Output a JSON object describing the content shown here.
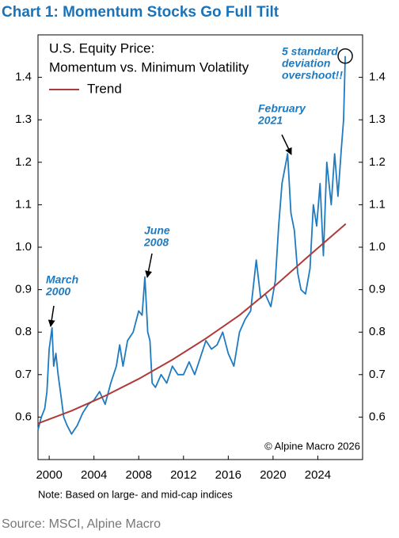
{
  "chart_data": {
    "type": "line",
    "title": "Chart 1: Momentum Stocks Go Full Tilt",
    "subtitle": [
      "U.S. Equity Price:",
      "Momentum vs. Minimum Volatility"
    ],
    "series": [
      {
        "color": "#1f7bc0",
        "x": [
          1999.0,
          1999.3,
          1999.6,
          1999.8,
          2000.0,
          2000.25,
          2000.4,
          2000.6,
          2000.8,
          2001.0,
          2001.3,
          2001.6,
          2002.0,
          2002.5,
          2003.0,
          2003.5,
          2004.0,
          2004.5,
          2005.0,
          2005.5,
          2006.0,
          2006.3,
          2006.6,
          2007.0,
          2007.5,
          2008.0,
          2008.3,
          2008.55,
          2008.8,
          2009.0,
          2009.2,
          2009.5,
          2010.0,
          2010.5,
          2011.0,
          2011.5,
          2012.0,
          2012.5,
          2013.0,
          2013.5,
          2014.0,
          2014.5,
          2015.0,
          2015.5,
          2016.0,
          2016.5,
          2017.0,
          2017.5,
          2018.0,
          2018.5,
          2018.9,
          2019.3,
          2019.8,
          2020.2,
          2020.5,
          2020.8,
          2021.3,
          2021.6,
          2021.9,
          2022.2,
          2022.5,
          2022.9,
          2023.3,
          2023.6,
          2023.9,
          2024.2,
          2024.5,
          2024.8,
          2025.2,
          2025.5,
          2025.8,
          2026.1,
          2026.3,
          2026.45
        ],
        "values": [
          0.57,
          0.6,
          0.62,
          0.66,
          0.76,
          0.81,
          0.72,
          0.75,
          0.7,
          0.66,
          0.6,
          0.58,
          0.56,
          0.58,
          0.61,
          0.63,
          0.64,
          0.66,
          0.63,
          0.68,
          0.72,
          0.77,
          0.72,
          0.78,
          0.8,
          0.85,
          0.84,
          0.93,
          0.8,
          0.78,
          0.68,
          0.67,
          0.7,
          0.68,
          0.72,
          0.7,
          0.7,
          0.73,
          0.7,
          0.74,
          0.78,
          0.76,
          0.77,
          0.8,
          0.75,
          0.72,
          0.8,
          0.83,
          0.85,
          0.97,
          0.88,
          0.89,
          0.86,
          0.92,
          1.05,
          1.15,
          1.22,
          1.08,
          1.04,
          0.94,
          0.9,
          0.89,
          0.95,
          1.1,
          1.05,
          1.15,
          0.98,
          1.2,
          1.1,
          1.22,
          1.12,
          1.23,
          1.3,
          1.45
        ]
      },
      {
        "name": "Trend",
        "color": "#b03a3a",
        "x": [
          1999,
          2002,
          2005,
          2008,
          2011,
          2014,
          2017,
          2020,
          2023,
          2026.5
        ],
        "values": [
          0.585,
          0.615,
          0.65,
          0.69,
          0.735,
          0.785,
          0.84,
          0.905,
          0.975,
          1.055
        ]
      }
    ],
    "xlim": [
      1999,
      2028
    ],
    "xticks": [
      2000,
      2004,
      2008,
      2012,
      2016,
      2020,
      2024
    ],
    "ylim": [
      0.5,
      1.5
    ],
    "yticks": [
      0.6,
      0.7,
      0.8,
      0.9,
      {
        "value": 1,
        "label": "1.0"
      },
      1.1,
      1.2,
      1.3,
      1.4
    ],
    "annotations": [
      [
        "March",
        "2000"
      ],
      [
        "June",
        "2008"
      ],
      [
        "February",
        "2021"
      ],
      [
        "5 standard",
        "deviation",
        "overshoot!!"
      ]
    ],
    "copyright": "© Alpine Macro 2026",
    "note": "Note: Based on large- and mid-cap indices",
    "source": "Source: MSCI, Alpine Macro"
  }
}
